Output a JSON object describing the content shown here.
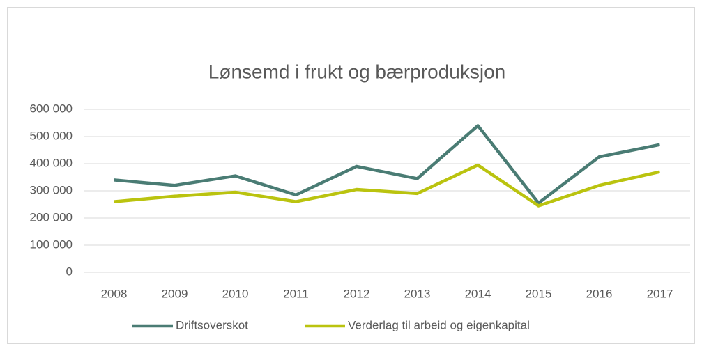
{
  "chart_data": {
    "type": "line",
    "title": "Lønsemd i frukt og bærproduksjon",
    "categories": [
      "2008",
      "2009",
      "2010",
      "2011",
      "2012",
      "2013",
      "2014",
      "2015",
      "2016",
      "2017"
    ],
    "series": [
      {
        "name": "Driftsoverskot",
        "color": "#4a7c74",
        "values": [
          340000,
          320000,
          355000,
          285000,
          390000,
          345000,
          540000,
          255000,
          425000,
          470000
        ]
      },
      {
        "name": "Verderlag til arbeid og eigenkapital",
        "color": "#bac30f",
        "values": [
          260000,
          280000,
          295000,
          260000,
          305000,
          290000,
          395000,
          245000,
          320000,
          370000
        ]
      }
    ],
    "ylim": [
      0,
      600000
    ],
    "yticks": [
      0,
      {
        "value": 100000,
        "label": "100 000"
      },
      {
        "value": 200000,
        "label": "200 000"
      },
      {
        "value": 300000,
        "label": "300 000"
      },
      {
        "value": 400000,
        "label": "400 000"
      },
      {
        "value": 500000,
        "label": "500 000"
      },
      {
        "value": 600000,
        "label": "600 000"
      }
    ],
    "grid": true,
    "legend": "bottom"
  }
}
